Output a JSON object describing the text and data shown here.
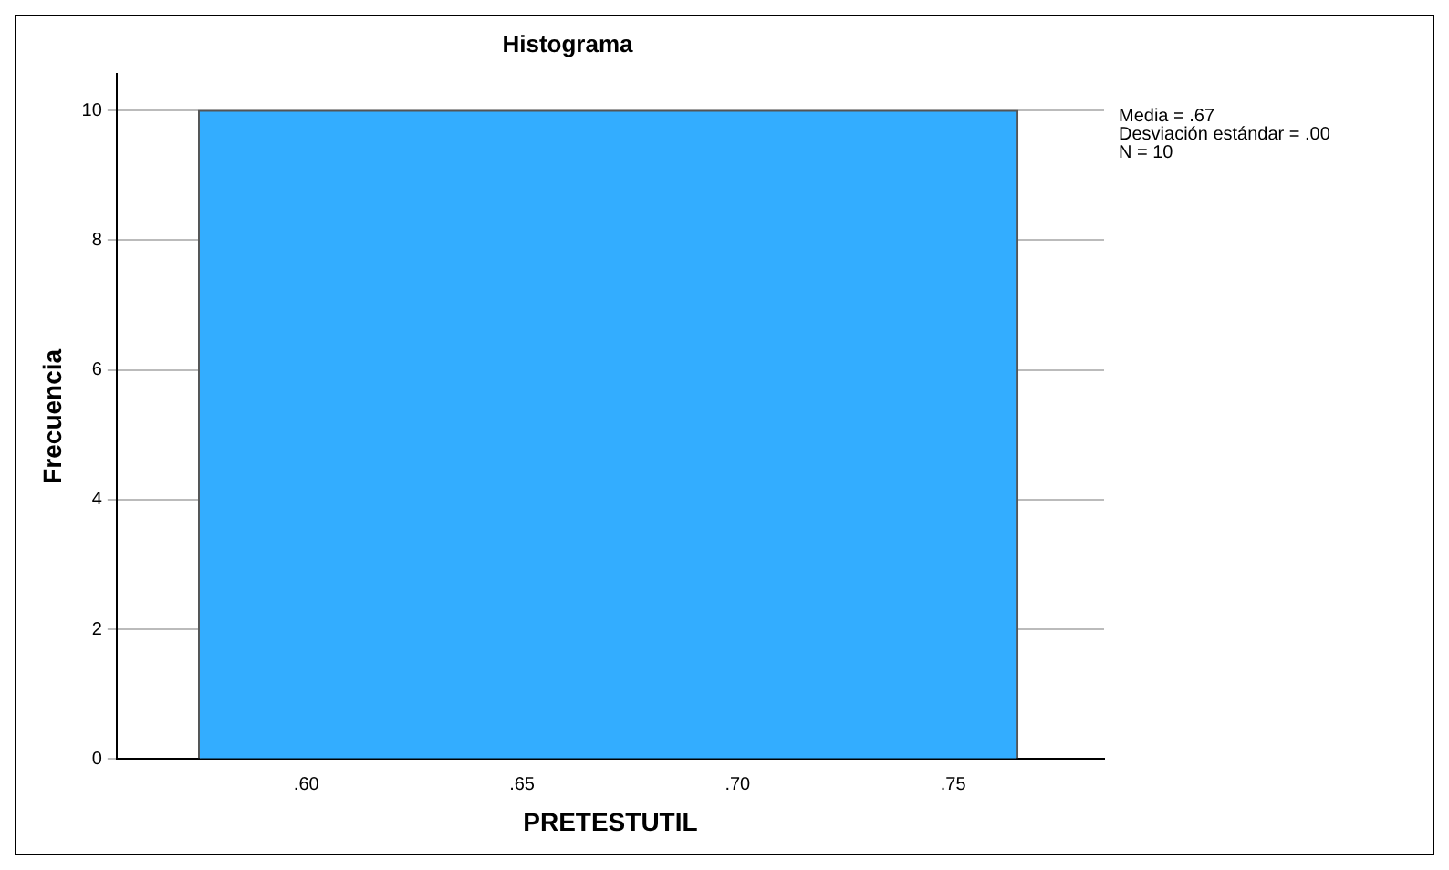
{
  "chart_data": {
    "type": "histogram",
    "title": "Histograma",
    "xlabel": "PRETESTUTIL",
    "ylabel": "Frecuencia",
    "bins": [
      0.575,
      0.765
    ],
    "values": [
      10
    ],
    "color": "#33adff",
    "xlim": [
      0.556,
      0.785
    ],
    "xticks": [
      {
        "value": 0.6,
        "label": ".60"
      },
      {
        "value": 0.65,
        "label": ".65"
      },
      {
        "value": 0.7,
        "label": ".70"
      },
      {
        "value": 0.75,
        "label": ".75"
      }
    ],
    "ylim": [
      0,
      10.56
    ],
    "yticks": [
      0,
      2,
      4,
      6,
      8,
      10
    ],
    "grid": "y",
    "annotations": [
      "Media = .67",
      "Desviación estándar = .00",
      "N = 10"
    ]
  }
}
